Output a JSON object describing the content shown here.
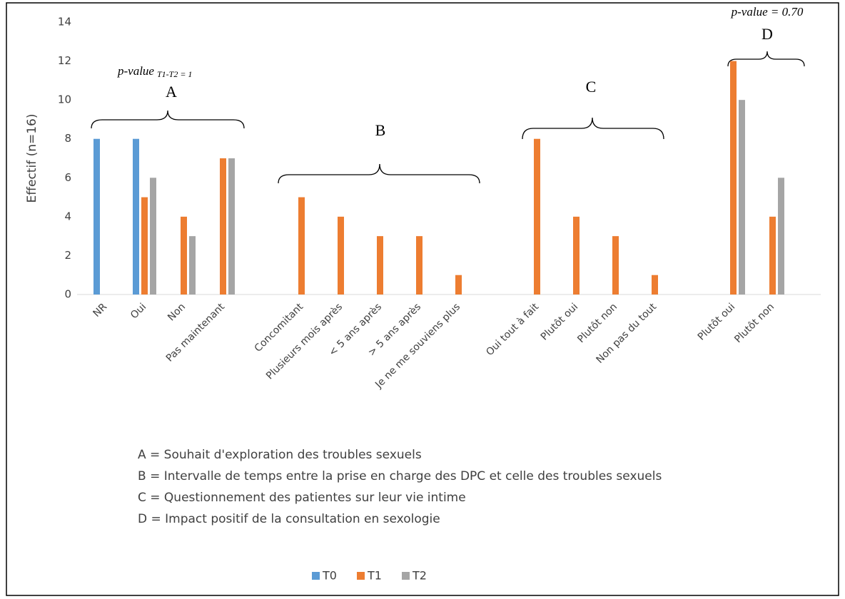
{
  "chart_data": {
    "type": "bar",
    "ylabel": "Effectif (n=16)",
    "categories": [
      "NR",
      "Oui",
      "Non",
      "Pas maintenant",
      null,
      "Concomitant",
      "Plusieurs mois après",
      "< 5 ans après",
      "> 5 ans après",
      "Je ne me souviens plus",
      null,
      "Oui tout à fait",
      "Plutôt oui",
      "Plutôt non",
      "Non pas du tout",
      null,
      "Plutôt oui",
      "Plutôt non"
    ],
    "series": [
      {
        "name": "T0",
        "color": "#5b9bd5",
        "values": [
          8,
          8,
          null,
          null,
          null,
          null,
          null,
          null,
          null,
          null,
          null,
          null,
          null,
          null,
          null,
          null,
          null,
          null
        ]
      },
      {
        "name": "T1",
        "color": "#ed7d31",
        "values": [
          null,
          5,
          4,
          7,
          null,
          5,
          4,
          3,
          3,
          1,
          null,
          8,
          4,
          3,
          1,
          null,
          12,
          4
        ]
      },
      {
        "name": "T2",
        "color": "#a5a5a5",
        "values": [
          null,
          6,
          3,
          7,
          null,
          null,
          null,
          null,
          null,
          null,
          null,
          null,
          null,
          null,
          null,
          null,
          10,
          6
        ]
      }
    ],
    "ylim": [
      0,
      14
    ],
    "yticks": [
      0,
      2,
      4,
      6,
      8,
      10,
      12,
      14
    ],
    "grid": false,
    "brace_labels": [
      "A",
      "B",
      "C",
      "D"
    ],
    "p_values": [
      {
        "text": "p-value",
        "sub": "T1-T2 = 1"
      },
      {
        "text": "p-value = 0.70"
      }
    ],
    "notes": [
      "A = Souhait d'exploration des troubles sexuels",
      "B = Intervalle de temps entre la prise en charge des DPC et celle des troubles sexuels",
      "C = Questionnement des patientes sur leur vie intime",
      "D = Impact positif de la consultation en sexologie"
    ],
    "legend": "bottom"
  }
}
